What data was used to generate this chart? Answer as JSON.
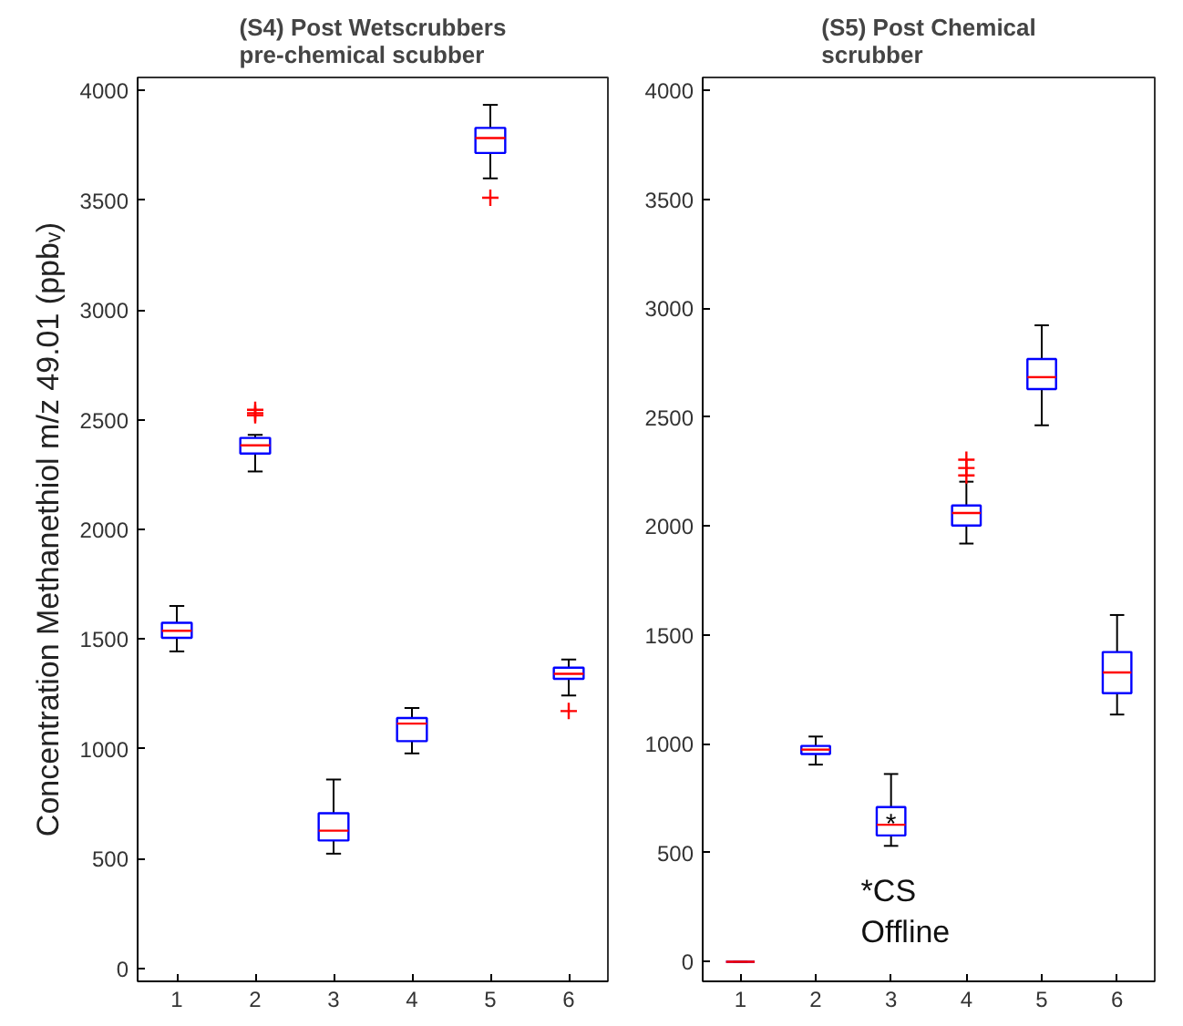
{
  "chart_data": [
    {
      "type": "box",
      "title": "(S4) Post Wetscrubbers\npre-chemical scubber",
      "ylabel": "Concentration Methanethiol m/z 49.01 (ppbᵥ)",
      "categories": [
        "1",
        "2",
        "3",
        "4",
        "5",
        "6"
      ],
      "series": [
        {
          "color": "#0000ff",
          "boxes": [
            {
              "low": 1444,
              "q1": 1506,
              "median": 1538,
              "q3": 1574,
              "high": 1651
            },
            {
              "low": 2264,
              "q1": 2346,
              "median": 2383,
              "q3": 2417,
              "high": 2431,
              "outliers": [
                2520,
                2530,
                2545
              ]
            },
            {
              "low": 522,
              "q1": 582,
              "median": 627,
              "q3": 706,
              "high": 860
            },
            {
              "low": 979,
              "q1": 1035,
              "median": 1115,
              "q3": 1140,
              "high": 1186
            },
            {
              "low": 3600,
              "q1": 3716,
              "median": 3784,
              "q3": 3830,
              "high": 3935,
              "outliers": [
                3512
              ]
            },
            {
              "low": 1243,
              "q1": 1319,
              "median": 1342,
              "q3": 1370,
              "high": 1407,
              "outliers": [
                1172
              ]
            }
          ]
        }
      ],
      "ylim": [
        -60,
        4060
      ],
      "yticks": [
        0,
        500,
        1000,
        1500,
        2000,
        2500,
        3000,
        3500,
        4000
      ],
      "grid": false
    },
    {
      "type": "box",
      "title": "(S5) Post Chemical\nscrubber",
      "categories": [
        "1",
        "2",
        "3",
        "4",
        "5",
        "6"
      ],
      "series": [
        {
          "color": "#0000ff",
          "boxes": [
            {
              "low": 0,
              "q1": 0,
              "median": 0,
              "q3": 0,
              "high": 0
            },
            {
              "low": 905,
              "q1": 954,
              "median": 974,
              "q3": 991,
              "high": 1034
            },
            {
              "low": 532,
              "q1": 580,
              "median": 629,
              "q3": 710,
              "high": 862
            },
            {
              "low": 1920,
              "q1": 2003,
              "median": 2060,
              "q3": 2095,
              "high": 2204,
              "outliers": [
                2233,
                2267,
                2305
              ]
            },
            {
              "low": 2463,
              "q1": 2629,
              "median": 2684,
              "q3": 2767,
              "high": 2922
            },
            {
              "low": 1135,
              "q1": 1233,
              "median": 1328,
              "q3": 1422,
              "high": 1592
            }
          ]
        }
      ],
      "annotations": [
        {
          "text": "*",
          "x": "3",
          "y": 629
        },
        "*CS Offline"
      ],
      "ylim": [
        -90,
        4060
      ],
      "yticks": [
        0,
        500,
        1000,
        1500,
        2000,
        2500,
        3000,
        3500,
        4000
      ],
      "grid": false
    }
  ]
}
